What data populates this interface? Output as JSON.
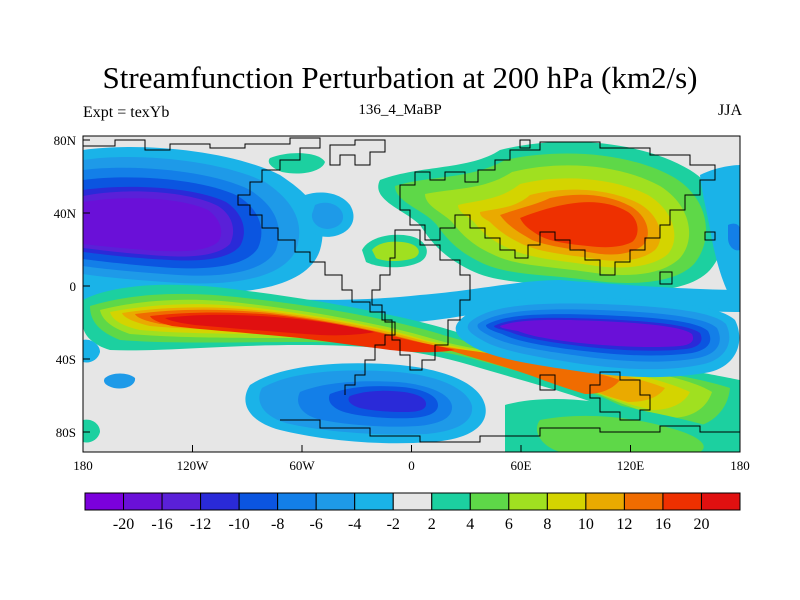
{
  "title": "Streamfunction Perturbation at 200 hPa (km2/s)",
  "left_label": "Expt = texYb",
  "center_label": "136_4_MaBP",
  "right_label": "JJA",
  "lat_ticks": [
    "80N",
    "40N",
    "0",
    "40S",
    "80S"
  ],
  "lon_ticks": [
    "180",
    "120W",
    "60W",
    "0",
    "60E",
    "120E",
    "180"
  ],
  "colorbar": {
    "colors": [
      "#7b00dc",
      "#6a10d8",
      "#5a20d8",
      "#2a2ad8",
      "#0b55e0",
      "#137fe8",
      "#1e9ae8",
      "#1ab3e8",
      "#e6e6e6",
      "#1cd0a0",
      "#5ed848",
      "#a0e020",
      "#d4d400",
      "#eaaa00",
      "#f06c00",
      "#ee3000",
      "#e01010"
    ],
    "labels": [
      "-20",
      "-16",
      "-12",
      "-10",
      "-8",
      "-6",
      "-4",
      "-2",
      "2",
      "4",
      "6",
      "8",
      "10",
      "12",
      "16",
      "20"
    ]
  }
}
